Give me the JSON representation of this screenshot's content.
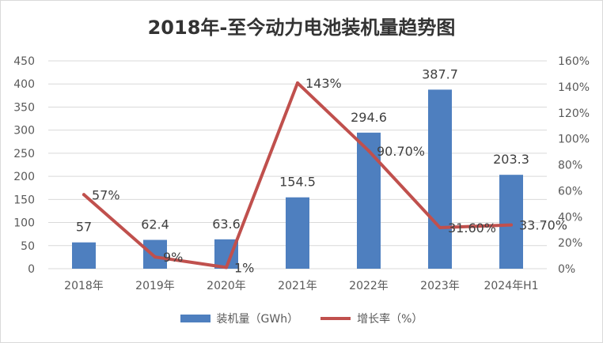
{
  "colors": {
    "bar": "#4E7FBF",
    "line": "#C0504D",
    "grid": "#D9D9D9",
    "axis_text": "#595959",
    "label_text": "#404040"
  },
  "chart_data": {
    "type": "bar",
    "title": "2018年-至今动力电池装机量趋势图",
    "categories": [
      "2018年",
      "2019年",
      "2020年",
      "2021年",
      "2022年",
      "2023年",
      "2024年H1"
    ],
    "series": [
      {
        "name": "装机量（GWh）",
        "type": "bar",
        "axis": "left",
        "values": [
          57,
          62.4,
          63.6,
          154.5,
          294.6,
          387.7,
          203.3
        ],
        "labels": [
          "57",
          "62.4",
          "63.6",
          "154.5",
          "294.6",
          "387.7",
          "203.3"
        ]
      },
      {
        "name": "增长率（%）",
        "type": "line",
        "axis": "right",
        "values": [
          57,
          9,
          1,
          143,
          90.7,
          31.6,
          33.7
        ],
        "labels": [
          "57%",
          "9%",
          "1%",
          "143%",
          "90.70%",
          "31.60%",
          "33.70%"
        ]
      }
    ],
    "y_left": {
      "ylim": [
        0,
        450
      ],
      "ticks": [
        0,
        50,
        100,
        150,
        200,
        250,
        300,
        350,
        400,
        450
      ],
      "tick_labels": [
        "0",
        "50",
        "100",
        "150",
        "200",
        "250",
        "300",
        "350",
        "400",
        "450"
      ]
    },
    "y_right": {
      "ylim": [
        0,
        160
      ],
      "ticks": [
        0,
        20,
        40,
        60,
        80,
        100,
        120,
        140,
        160
      ],
      "tick_labels": [
        "0%",
        "20%",
        "40%",
        "60%",
        "80%",
        "100%",
        "120%",
        "140%",
        "160%"
      ]
    },
    "grid": true,
    "legend_position": "bottom"
  }
}
